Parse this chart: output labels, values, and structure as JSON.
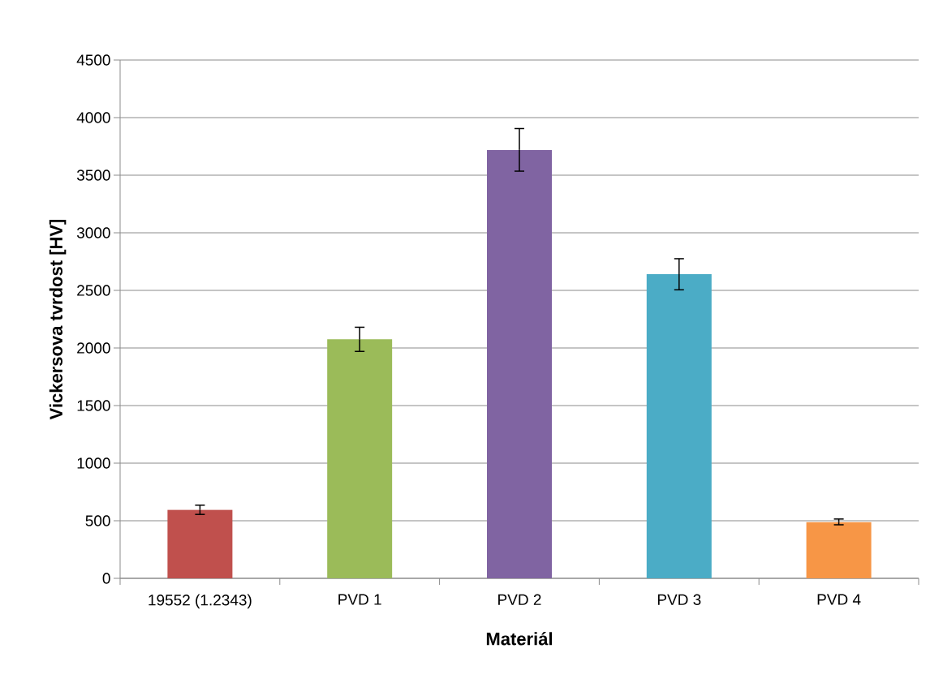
{
  "chart_data": {
    "type": "bar",
    "xlabel": "Materiál",
    "ylabel": "Vickersova tvrdost [HV]",
    "categories": [
      "19552 (1.2343)",
      "PVD 1",
      "PVD 2",
      "PVD 3",
      "PVD 4"
    ],
    "values": [
      595,
      2075,
      3720,
      2640,
      490
    ],
    "errors": [
      40,
      105,
      185,
      135,
      25
    ],
    "colors": [
      "#c0504d",
      "#9bbb59",
      "#8064a2",
      "#4bacc6",
      "#f79646"
    ],
    "ylim": [
      0,
      4500
    ],
    "yticks": [
      0,
      500,
      1000,
      1500,
      2000,
      2500,
      3000,
      3500,
      4000,
      4500
    ],
    "grid": "y"
  }
}
